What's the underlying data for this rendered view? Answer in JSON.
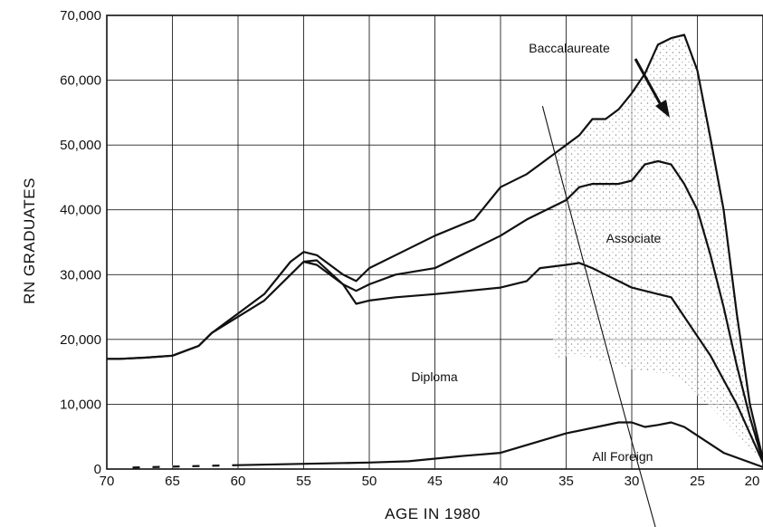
{
  "chart_data": {
    "type": "line",
    "title": "",
    "xlabel": "AGE IN 1980",
    "ylabel": "RN GRADUATES",
    "xlim": [
      70,
      20
    ],
    "ylim": [
      0,
      70000
    ],
    "x_ticks": [
      70,
      65,
      60,
      55,
      50,
      45,
      40,
      35,
      30,
      25,
      20
    ],
    "x_tick_labels": [
      "70",
      "65",
      "60",
      "55",
      "50",
      "45",
      "40",
      "35",
      "30",
      "25",
      "20"
    ],
    "y_ticks": [
      0,
      10000,
      20000,
      30000,
      40000,
      50000,
      60000,
      70000
    ],
    "y_tick_labels": [
      "0",
      "10,000",
      "20,000",
      "30,000",
      "40,000",
      "50,000",
      "60,000",
      "70,000"
    ],
    "grid": true,
    "series": [
      {
        "name": "All Foreign",
        "x": [
          69,
          60,
          50,
          47,
          43,
          40,
          35,
          31,
          30,
          29,
          28,
          27,
          26,
          23,
          20
        ],
        "y": [
          200,
          600,
          1000,
          1200,
          2000,
          2500,
          5500,
          7200,
          7200,
          6500,
          6800,
          7200,
          6500,
          2500,
          300
        ]
      },
      {
        "name": "Diploma",
        "x": [
          70,
          69,
          67,
          65,
          63,
          62,
          60,
          58,
          56,
          55,
          54,
          52,
          51,
          50,
          48,
          45,
          40,
          38,
          37,
          35,
          34,
          33,
          32,
          31,
          30,
          29,
          28,
          27,
          26,
          24,
          22,
          20
        ],
        "y": [
          17000,
          17000,
          17200,
          17500,
          19000,
          21000,
          23500,
          26000,
          30000,
          32000,
          31500,
          28500,
          25500,
          26000,
          26500,
          27000,
          28000,
          29000,
          31000,
          31500,
          31800,
          31000,
          30000,
          29000,
          28000,
          27500,
          27000,
          26500,
          23500,
          17500,
          10000,
          1000
        ]
      },
      {
        "name": "Associate",
        "x": [
          55,
          54,
          52,
          51,
          50,
          48,
          45,
          40,
          38,
          37,
          35,
          34,
          33,
          32,
          31,
          30,
          29,
          28,
          27,
          26,
          25,
          24,
          23,
          22,
          21,
          20
        ],
        "y": [
          32000,
          32200,
          28500,
          27500,
          28500,
          30000,
          31000,
          36000,
          38500,
          39500,
          41500,
          43500,
          44000,
          44000,
          44000,
          44500,
          47000,
          47500,
          47000,
          44000,
          40000,
          33000,
          25000,
          16000,
          8000,
          1200
        ]
      },
      {
        "name": "Baccalaureate",
        "x": [
          70,
          69,
          67,
          65,
          63,
          62,
          60,
          58,
          56,
          55,
          54,
          52,
          51,
          50,
          48,
          45,
          42,
          40,
          38,
          37,
          35,
          34,
          33,
          32,
          31,
          30,
          29,
          28,
          27,
          26,
          25,
          24,
          23,
          22,
          21,
          20
        ],
        "y": [
          17000,
          17000,
          17200,
          17500,
          19000,
          21000,
          24000,
          27000,
          32000,
          33500,
          33000,
          30000,
          29000,
          31000,
          33000,
          36000,
          38500,
          43500,
          45500,
          47000,
          50000,
          51500,
          54000,
          54000,
          55500,
          58000,
          61000,
          65500,
          66500,
          67000,
          61500,
          51000,
          40000,
          24000,
          10000,
          1500
        ]
      }
    ],
    "annotations": [
      "Baccalaureate",
      "Associate",
      "Diploma",
      "All Foreign"
    ]
  }
}
